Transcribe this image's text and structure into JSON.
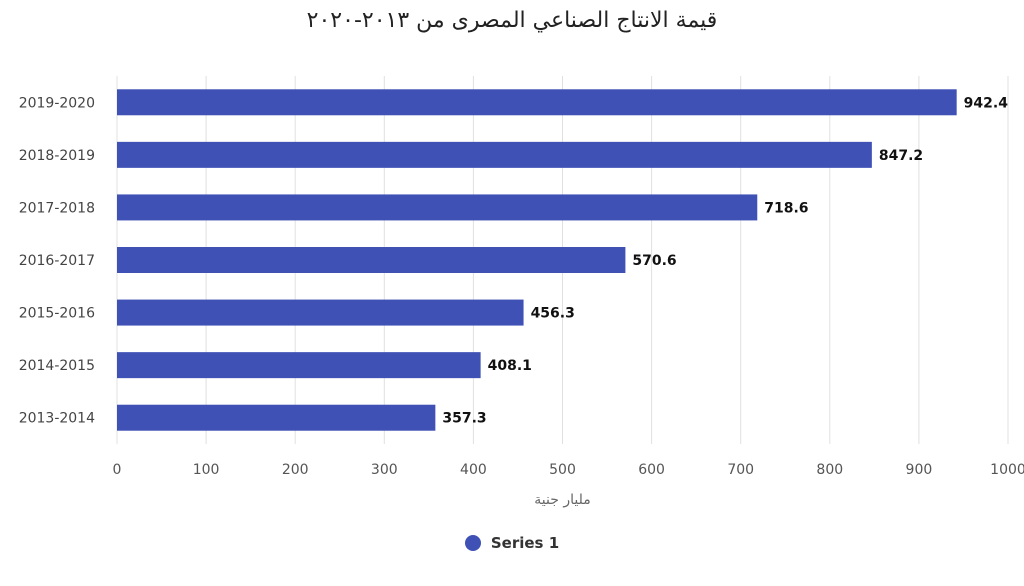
{
  "chart_data": {
    "type": "bar",
    "orientation": "horizontal",
    "title": "قيمة الانتاج الصناعي المصرى من ٢٠١٣-٢٠٢٠",
    "xlabel": "مليار جنية",
    "ylabel": "",
    "categories": [
      "2019-2020",
      "2018-2019",
      "2017-2018",
      "2016-2017",
      "2015-2016",
      "2014-2015",
      "2013-2014"
    ],
    "series": [
      {
        "name": "Series 1",
        "color": "#3f51b5",
        "values": [
          942.4,
          847.2,
          718.6,
          570.6,
          456.3,
          408.1,
          357.3
        ],
        "labels": [
          "942.4",
          "847.2",
          "718.6",
          "570.6",
          "456.3",
          "408.1",
          "357.3"
        ]
      }
    ],
    "xlim": [
      0,
      1000
    ],
    "xticks": [
      0,
      100,
      200,
      300,
      400,
      500,
      600,
      700,
      800,
      900,
      1000
    ],
    "xtick_labels": [
      "0",
      "100",
      "200",
      "300",
      "400",
      "500",
      "600",
      "700",
      "800",
      "900",
      "1000"
    ],
    "grid": true,
    "legend_position": "bottom"
  }
}
